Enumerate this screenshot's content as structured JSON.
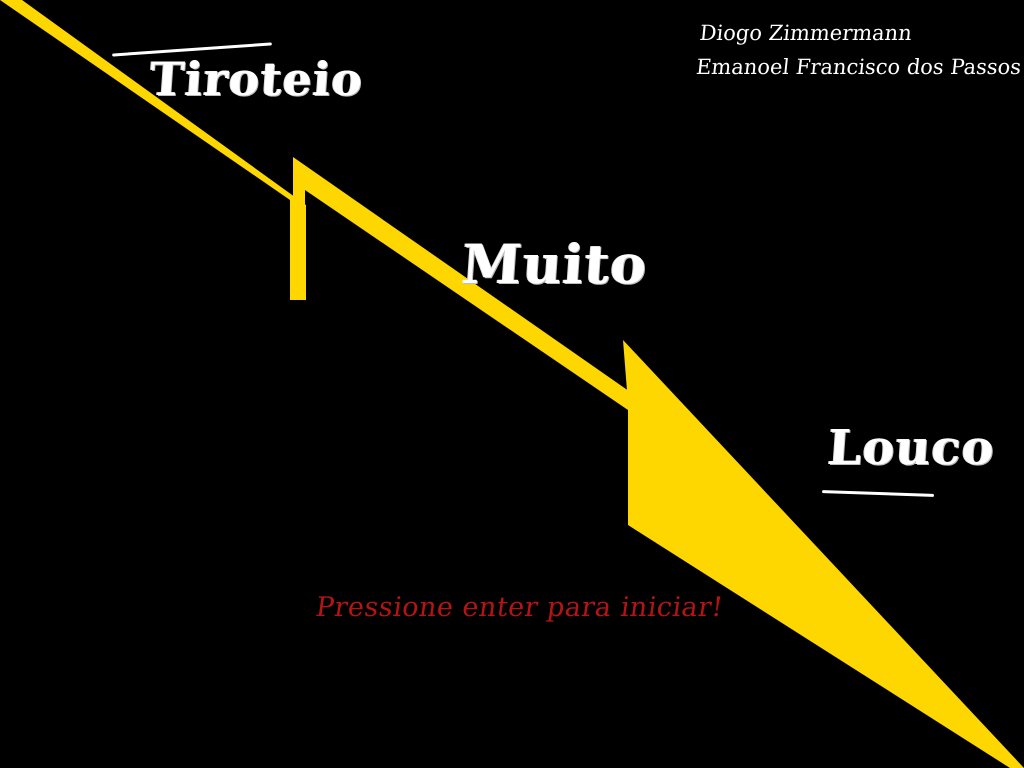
{
  "title": {
    "word1": "Tiroteio",
    "word2": "Muito",
    "word3": "Louco"
  },
  "credits": {
    "author1": "Diogo Zimmermann",
    "author2": "Emanoel Francisco dos Passos"
  },
  "prompt": {
    "text": "Pressione enter para iniciar!"
  },
  "colors": {
    "background": "#000000",
    "bolt": "#ffd700",
    "title_text": "#ffffff",
    "prompt_text": "#b31515"
  },
  "decoration": {
    "bolt_icon": "lightning-bolt-icon"
  }
}
